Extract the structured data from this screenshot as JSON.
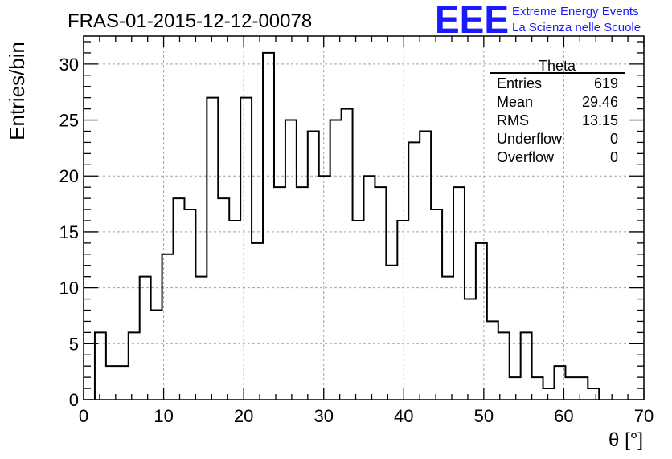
{
  "header": {
    "run_id": "FRAS-01-2015-12-12-00078",
    "logo_text": "EEE",
    "logo_line1": "Extreme Energy Events",
    "logo_line2": "La Scienza nelle Scuole"
  },
  "stats_box": {
    "title": "Theta",
    "rows": [
      {
        "label": "Entries",
        "value": "619"
      },
      {
        "label": "Mean",
        "value": "29.46"
      },
      {
        "label": "RMS",
        "value": "13.15"
      },
      {
        "label": "Underflow",
        "value": "0"
      },
      {
        "label": "Overflow",
        "value": "0"
      }
    ]
  },
  "colors": {
    "line": "#000000",
    "grid": "#a0a0a0",
    "logo": "#1a1aff"
  },
  "chart_data": {
    "type": "histogram",
    "title": "FRAS-01-2015-12-12-00078",
    "xlabel": "θ [°]",
    "ylabel": "Entries/bin",
    "xlim": [
      0,
      70
    ],
    "ylim": [
      0,
      32.5
    ],
    "x_ticks": [
      0,
      10,
      20,
      30,
      40,
      50,
      60,
      70
    ],
    "y_ticks": [
      0,
      5,
      10,
      15,
      20,
      25,
      30
    ],
    "grid": true,
    "bin_width": 1.4,
    "bin_start": 1.4,
    "values": [
      6,
      3,
      3,
      6,
      11,
      8,
      13,
      18,
      17,
      11,
      27,
      18,
      16,
      27,
      14,
      31,
      19,
      25,
      19,
      24,
      20,
      25,
      26,
      16,
      20,
      19,
      12,
      16,
      23,
      24,
      17,
      11,
      19,
      9,
      14,
      7,
      6,
      2,
      6,
      2,
      1,
      3,
      2,
      2,
      1
    ]
  }
}
